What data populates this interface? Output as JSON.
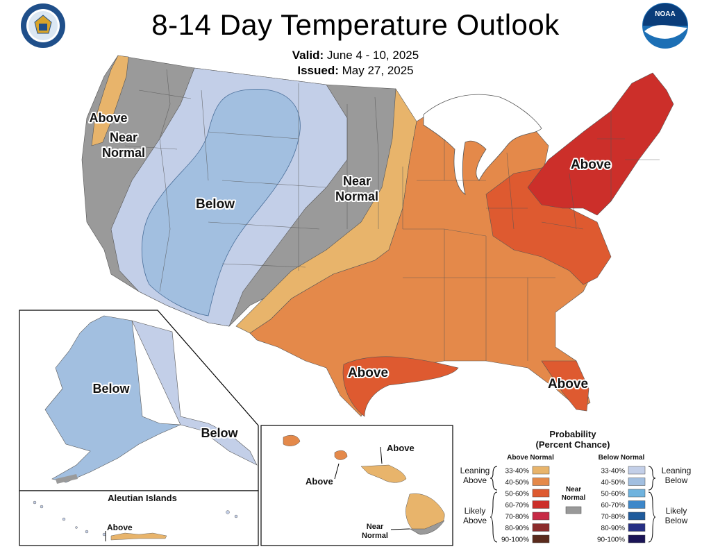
{
  "header": {
    "title": "8-14 Day Temperature Outlook",
    "valid_label": "Valid:",
    "valid_value": "June 4 - 10, 2025",
    "issued_label": "Issued:",
    "issued_value": "May 27, 2025"
  },
  "logos": {
    "left": "doc-seal",
    "right": "noaa-logo",
    "noaa_text": "NOAA"
  },
  "map_labels": {
    "west_above": "Above",
    "west_near_1": "Near",
    "west_near_2": "Normal",
    "west_below": "Below",
    "plains_near_1": "Near",
    "plains_near_2": "Normal",
    "northeast_above": "Above",
    "texas_above": "Above",
    "florida_above": "Above"
  },
  "alaska": {
    "below_1": "Below",
    "below_2": "Below"
  },
  "aleutian": {
    "title": "Aleutian Islands",
    "above": "Above"
  },
  "hawaii": {
    "above_1": "Above",
    "above_2": "Above",
    "near_1": "Near",
    "near_2": "Normal"
  },
  "legend": {
    "title_1": "Probability",
    "title_2": "(Percent Chance)",
    "above_header": "Above Normal",
    "below_header": "Below Normal",
    "near_1": "Near",
    "near_2": "Normal",
    "leaning_above_1": "Leaning",
    "leaning_above_2": "Above",
    "likely_above_1": "Likely",
    "likely_above_2": "Above",
    "leaning_below_1": "Leaning",
    "leaning_below_2": "Below",
    "likely_below_1": "Likely",
    "likely_below_2": "Below",
    "above_bins": [
      {
        "label": "33-40%",
        "color": "#e8b46b"
      },
      {
        "label": "40-50%",
        "color": "#e4894a"
      },
      {
        "label": "50-60%",
        "color": "#de5a30"
      },
      {
        "label": "60-70%",
        "color": "#cc2f2a"
      },
      {
        "label": "70-80%",
        "color": "#c72a45"
      },
      {
        "label": "80-90%",
        "color": "#8b2b2b"
      },
      {
        "label": "90-100%",
        "color": "#5a2a1c"
      }
    ],
    "below_bins": [
      {
        "label": "33-40%",
        "color": "#c3cfe8"
      },
      {
        "label": "40-50%",
        "color": "#a2bfe0"
      },
      {
        "label": "50-60%",
        "color": "#6fb3de"
      },
      {
        "label": "60-70%",
        "color": "#3d87c9"
      },
      {
        "label": "70-80%",
        "color": "#1f5b9c"
      },
      {
        "label": "80-90%",
        "color": "#262f84"
      },
      {
        "label": "90-100%",
        "color": "#1a1456"
      }
    ],
    "near_color": "#999999"
  }
}
